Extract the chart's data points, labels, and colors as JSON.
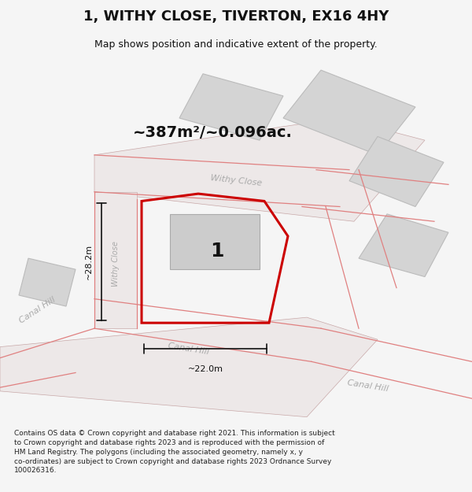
{
  "title": "1, WITHY CLOSE, TIVERTON, EX16 4HY",
  "subtitle": "Map shows position and indicative extent of the property.",
  "area_text": "~387m²/~0.096ac.",
  "label_number": "1",
  "dim_width": "~22.0m",
  "dim_height": "~28.2m",
  "street_withy_close": "Withy Close",
  "street_canal_hill_1": "Canal Hill",
  "street_canal_hill_2": "Canal Hill",
  "street_withy_close_vert": "Withy Close",
  "copyright_text": "Contains OS data © Crown copyright and database right 2021. This information is subject\nto Crown copyright and database rights 2023 and is reproduced with the permission of\nHM Land Registry. The polygons (including the associated geometry, namely x, y\nco-ordinates) are subject to Crown copyright and database rights 2023 Ordnance Survey\n100026316.",
  "bg_color": "#f5f5f5",
  "map_bg": "#ffffff",
  "bld_color": "#d4d4d4",
  "bld_edge": "#bbbbbb",
  "road_line_color": "#e08080",
  "plot_stroke": "#cc0000",
  "dim_color": "#111111",
  "title_color": "#111111",
  "street_color": "#aaaaaa",
  "number_color": "#111111"
}
